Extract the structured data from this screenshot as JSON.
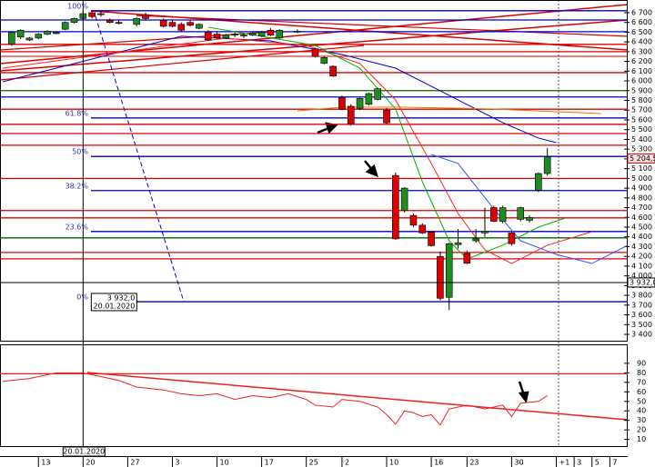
{
  "chart_data": [
    {
      "type": "candlestick",
      "xlim": [
        0,
        70
      ],
      "xticks": [
        {
          "value": 4,
          "label": "13"
        },
        {
          "value": 9,
          "label": "20"
        },
        {
          "value": 14,
          "label": "27"
        },
        {
          "value": 19,
          "label": "3"
        },
        {
          "value": 24,
          "label": "10"
        },
        {
          "value": 29,
          "label": "17"
        },
        {
          "value": 34,
          "label": "25"
        },
        {
          "value": 38,
          "label": "2"
        },
        {
          "value": 43,
          "label": "10"
        },
        {
          "value": 48,
          "label": "16"
        },
        {
          "value": 52,
          "label": "23"
        },
        {
          "value": 57,
          "label": "30"
        },
        {
          "value": 62,
          "label": "+1"
        },
        {
          "value": 64,
          "label": "3"
        },
        {
          "value": 66,
          "label": "5"
        },
        {
          "value": 68,
          "label": "7"
        }
      ],
      "ylim": [
        3335,
        6830
      ],
      "yticks": [
        {
          "value": 6700,
          "label": "6 700"
        },
        {
          "value": 6600,
          "label": "6 600"
        },
        {
          "value": 6500,
          "label": "6 500"
        },
        {
          "value": 6400,
          "label": "6 400"
        },
        {
          "value": 6300,
          "label": "6 300"
        },
        {
          "value": 6200,
          "label": "6 200"
        },
        {
          "value": 6100,
          "label": "6 100"
        },
        {
          "value": 6000,
          "label": "6 000"
        },
        {
          "value": 5900,
          "label": "5 900"
        },
        {
          "value": 5800,
          "label": "5 800"
        },
        {
          "value": 5700,
          "label": "5 700"
        },
        {
          "value": 5600,
          "label": "5 600"
        },
        {
          "value": 5500,
          "label": "5 500"
        },
        {
          "value": 5400,
          "label": "5 400"
        },
        {
          "value": 5300,
          "label": "5 300"
        },
        {
          "value": 5200,
          "label": "5 200"
        },
        {
          "value": 5100,
          "label": "5 100"
        },
        {
          "value": 5000,
          "label": "5 000"
        },
        {
          "value": 4900,
          "label": "4 900"
        },
        {
          "value": 4800,
          "label": "4 800"
        },
        {
          "value": 4700,
          "label": "4 700"
        },
        {
          "value": 4600,
          "label": "4 600"
        },
        {
          "value": 4500,
          "label": "4 500"
        },
        {
          "value": 4400,
          "label": "4 400"
        },
        {
          "value": 4300,
          "label": "4 300"
        },
        {
          "value": 4200,
          "label": "4 200"
        },
        {
          "value": 4100,
          "label": "4 100"
        },
        {
          "value": 4000,
          "label": "4 000"
        },
        {
          "value": 3900,
          "label": "3 900"
        },
        {
          "value": 3800,
          "label": "3 800"
        },
        {
          "value": 3700,
          "label": "3 700"
        },
        {
          "value": 3600,
          "label": "3 600"
        },
        {
          "value": 3500,
          "label": "3 500"
        },
        {
          "value": 3400,
          "label": "3 400"
        }
      ],
      "up_color": "#1e8c1e",
      "down_color": "#dd0000",
      "candles": {
        "x": [
          1,
          2,
          3,
          4,
          5,
          6,
          7,
          8,
          9,
          10,
          11,
          12,
          13,
          15,
          16,
          18,
          19,
          20,
          21,
          22,
          23,
          24,
          25,
          26,
          27,
          28,
          29,
          30,
          31,
          33,
          35,
          36,
          37,
          38,
          39,
          40,
          41,
          42,
          43,
          44,
          45,
          46,
          47,
          48,
          49,
          50,
          51,
          52,
          53,
          54,
          55,
          56,
          57,
          58,
          59,
          60,
          61
        ],
        "open": [
          6380,
          6450,
          6420,
          6440,
          6480,
          6490,
          6530,
          6600,
          6640,
          6700,
          6690,
          6620,
          6600,
          6580,
          6680,
          6620,
          6600,
          6580,
          6600,
          6540,
          6500,
          6480,
          6440,
          6470,
          6460,
          6470,
          6460,
          6520,
          6440,
          6500,
          6330,
          6180,
          6150,
          5830,
          5740,
          5720,
          5760,
          5810,
          5700,
          5030,
          4670,
          4620,
          4520,
          4450,
          4200,
          3780,
          4320,
          4230,
          4360,
          4440,
          4700,
          4560,
          4440,
          4580,
          4570,
          4880,
          5050
        ],
        "high": [
          6510,
          6530,
          6450,
          6490,
          6520,
          6500,
          6610,
          6650,
          6720,
          6720,
          6720,
          6640,
          6620,
          6650,
          6700,
          6640,
          6620,
          6600,
          6620,
          6590,
          6520,
          6500,
          6480,
          6500,
          6490,
          6500,
          6510,
          6540,
          6530,
          6530,
          6340,
          6250,
          6160,
          5850,
          5760,
          5830,
          5880,
          5930,
          5720,
          5060,
          4910,
          4640,
          4540,
          4460,
          4250,
          4340,
          4480,
          4260,
          4480,
          4700,
          4720,
          4720,
          4460,
          4710,
          4620,
          5060,
          5310
        ],
        "low": [
          6360,
          6430,
          6410,
          6430,
          6470,
          6480,
          6520,
          6590,
          6630,
          6640,
          6660,
          6590,
          6580,
          6560,
          6620,
          6550,
          6550,
          6510,
          6560,
          6530,
          6410,
          6430,
          6430,
          6450,
          6440,
          6460,
          6450,
          6460,
          6430,
          6490,
          6240,
          6170,
          6040,
          5700,
          5540,
          5700,
          5750,
          5800,
          5560,
          4370,
          4650,
          4500,
          4430,
          4300,
          3750,
          3650,
          4280,
          4120,
          4340,
          4400,
          4550,
          4540,
          4310,
          4560,
          4550,
          4860,
          5030
        ],
        "close": [
          6500,
          6520,
          6440,
          6480,
          6510,
          6495,
          6600,
          6640,
          6690,
          6660,
          6680,
          6600,
          6590,
          6640,
          6640,
          6560,
          6560,
          6520,
          6570,
          6580,
          6420,
          6440,
          6470,
          6480,
          6470,
          6490,
          6500,
          6470,
          6520,
          6510,
          6250,
          6240,
          6050,
          5710,
          5560,
          5820,
          5870,
          5920,
          5570,
          4380,
          4900,
          4520,
          4440,
          4310,
          3770,
          4330,
          4340,
          4130,
          4380,
          4460,
          4560,
          4700,
          4330,
          4700,
          4600,
          5050,
          5220
        ]
      },
      "series": [
        {
          "color": "#0000cc",
          "x": [
            0,
            20,
            30,
            38,
            44,
            48,
            52,
            56,
            60,
            62
          ],
          "values": [
            5991,
            6458,
            6411,
            6271,
            6131,
            5945,
            5758,
            5572,
            5414,
            5367
          ]
        },
        {
          "color": "#ff2020",
          "x": [
            0,
            15,
            25,
            34,
            40,
            44,
            48,
            51,
            54,
            57,
            61,
            66
          ],
          "values": [
            6131,
            6318,
            6439,
            6364,
            6178,
            5805,
            5153,
            4640,
            4267,
            4127,
            4314,
            4453
          ]
        },
        {
          "color": "#00b000",
          "x": [
            23,
            35,
            40,
            44,
            47,
            50,
            52,
            56,
            60,
            63
          ],
          "values": [
            6551,
            6364,
            6131,
            5712,
            4966,
            4360,
            4174,
            4314,
            4500,
            4593
          ]
        },
        {
          "color": "#3050ff",
          "x": [
            48,
            51,
            55,
            58,
            62,
            66,
            70
          ],
          "values": [
            5246,
            5153,
            4687,
            4360,
            4220,
            4127,
            4314
          ]
        },
        {
          "color": "#e07800",
          "x": [
            33,
            38,
            45,
            55,
            67
          ],
          "values": [
            5693,
            5730,
            5730,
            5712,
            5665
          ]
        }
      ],
      "levels": [
        {
          "value": 6625,
          "color": "#0000cc"
        },
        {
          "value": 6505,
          "color": "#0000cc"
        },
        {
          "value": 6375,
          "color": "#dd0000"
        },
        {
          "value": 6300,
          "color": "#dd0000"
        },
        {
          "value": 6085,
          "color": "#dd0000"
        },
        {
          "value": 5900,
          "color": "#006400"
        },
        {
          "value": 5835,
          "color": "#0000cc"
        },
        {
          "value": 5710,
          "color": "#dd0000"
        },
        {
          "value": 5555,
          "color": "#dd0000"
        },
        {
          "value": 5460,
          "color": "#dd0000"
        },
        {
          "value": 5340,
          "color": "#dd0000"
        },
        {
          "value": 5000,
          "color": "#dd0000"
        },
        {
          "value": 4670,
          "color": "#dd0000"
        },
        {
          "value": 4595,
          "color": "#dd0000"
        },
        {
          "value": 4390,
          "color": "#006400"
        },
        {
          "value": 4240,
          "color": "#dd0000"
        },
        {
          "value": 4175,
          "color": "#dd0000"
        }
      ],
      "fib_color": "#0000cc",
      "fib_levels": [
        {
          "value": 6720,
          "label": "100%"
        },
        {
          "value": 5620,
          "label": "61.8%"
        },
        {
          "value": 5225,
          "label": "50%"
        },
        {
          "value": 4875,
          "label": "38.2%"
        },
        {
          "value": 4455,
          "label": "23.6%"
        },
        {
          "value": 3735,
          "label": "0%"
        }
      ],
      "cursor": {
        "x": 9,
        "value": 3932,
        "label": "3 932,0",
        "date": "20.01.2020"
      },
      "last_price": {
        "value": 5204.5,
        "label": "5 204,5"
      }
    },
    {
      "type": "line",
      "ylim": [
        2,
        109
      ],
      "yticks": [
        90,
        80,
        70,
        60,
        50,
        40,
        30,
        20,
        10
      ],
      "series": [
        {
          "color": "#ee2020",
          "x": [
            0,
            3,
            6,
            9,
            11,
            13,
            15,
            18,
            20,
            22,
            24,
            26,
            28,
            30,
            32,
            34,
            35,
            37,
            38,
            40,
            42,
            43,
            44,
            45,
            46,
            47,
            48,
            49,
            50,
            52,
            54,
            56,
            57,
            58,
            60,
            61
          ],
          "values": [
            71,
            74,
            80,
            80,
            76,
            72,
            65,
            62,
            58,
            56,
            58,
            52,
            56,
            54,
            58,
            52,
            46,
            44,
            52,
            50,
            44,
            36,
            26,
            40,
            38,
            34,
            36,
            25,
            42,
            46,
            42,
            46,
            34,
            48,
            50,
            56
          ]
        }
      ],
      "levels": [
        {
          "value": 79,
          "color": "#ee2020"
        }
      ]
    }
  ]
}
